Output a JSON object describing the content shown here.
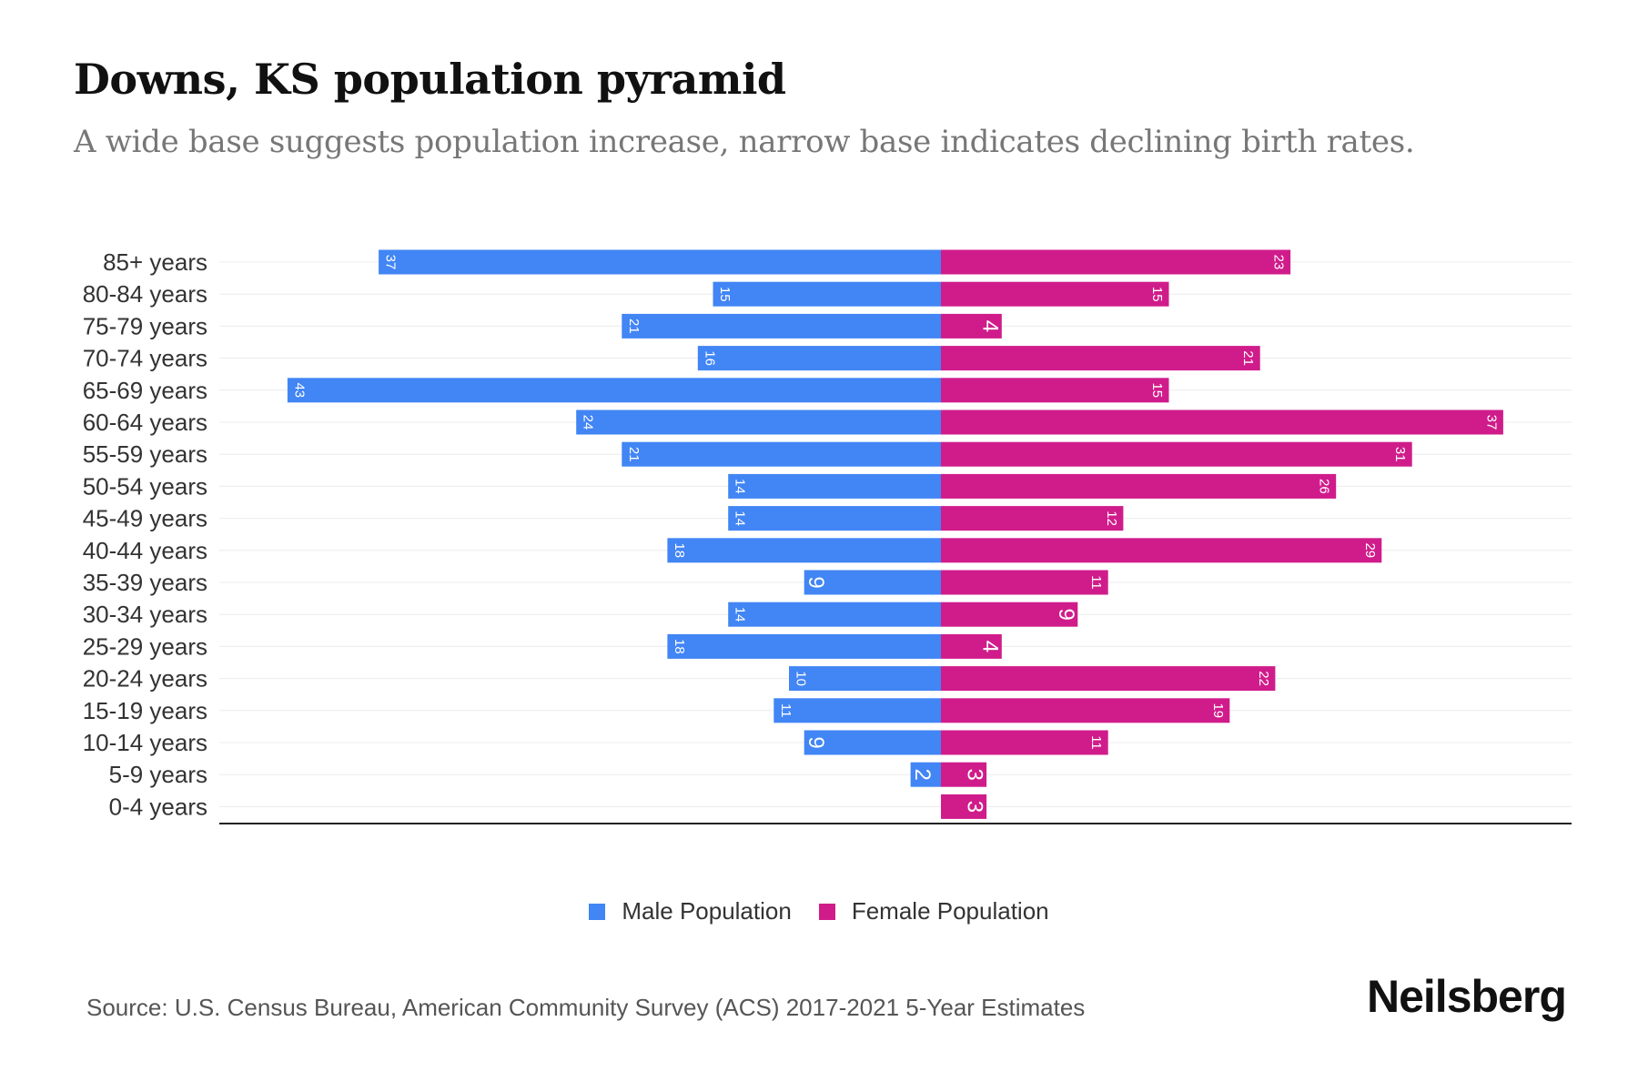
{
  "title": "Downs, KS population pyramid",
  "subtitle": "A wide base suggests population increase, narrow base indicates declining birth rates.",
  "source": "Source: U.S. Census Bureau, American Community Survey (ACS) 2017-2021 5-Year Estimates",
  "brand": "Neilsberg",
  "chart_data": {
    "type": "bar",
    "orientation": "horizontal-pyramid",
    "categories": [
      "85+ years",
      "80-84 years",
      "75-79 years",
      "70-74 years",
      "65-69 years",
      "60-64 years",
      "55-59 years",
      "50-54 years",
      "45-49 years",
      "40-44 years",
      "35-39 years",
      "30-34 years",
      "25-29 years",
      "20-24 years",
      "15-19 years",
      "10-14 years",
      "5-9 years",
      "0-4 years"
    ],
    "series": [
      {
        "name": "Male Population",
        "color": "#4285f4",
        "side": "left",
        "values": [
          37,
          15,
          21,
          16,
          43,
          24,
          21,
          14,
          14,
          18,
          9,
          14,
          18,
          10,
          11,
          9,
          2,
          0
        ]
      },
      {
        "name": "Female Population",
        "color": "#d01c8b",
        "side": "right",
        "values": [
          23,
          15,
          4,
          21,
          15,
          37,
          31,
          26,
          12,
          29,
          11,
          9,
          4,
          22,
          19,
          11,
          3,
          3
        ]
      }
    ],
    "legend_position": "bottom-center",
    "grid": true
  }
}
